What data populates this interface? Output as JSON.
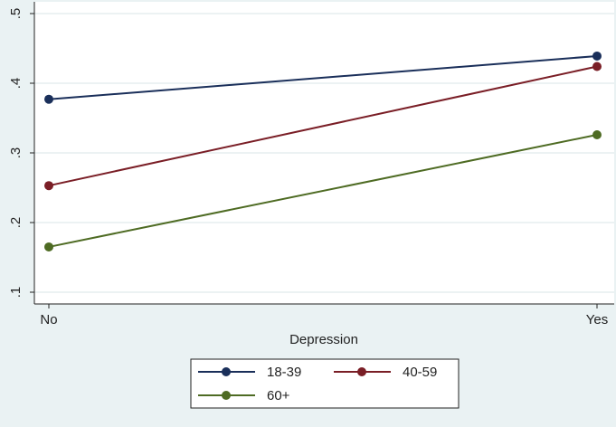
{
  "chart_data": {
    "type": "line",
    "title": "",
    "xlabel": "Depression",
    "ylabel": "",
    "categories": [
      "No",
      "Yes"
    ],
    "ylim": [
      0.1,
      0.5
    ],
    "yticks": [
      0.1,
      0.2,
      0.3,
      0.4,
      0.5
    ],
    "ytick_labels": [
      ".1",
      ".2",
      ".3",
      ".4",
      ".5"
    ],
    "grid": true,
    "legend_placement": "bottom",
    "series": [
      {
        "name": "18-39",
        "values": [
          0.377,
          0.439
        ],
        "color": "#1a2f5a"
      },
      {
        "name": "40-59",
        "values": [
          0.253,
          0.424
        ],
        "color": "#7a1e26"
      },
      {
        "name": "60+",
        "values": [
          0.165,
          0.326
        ],
        "color": "#4e6b23"
      }
    ]
  },
  "colors": {
    "page_background": "#eaf2f3",
    "plot_background": "#ffffff",
    "grid": "#e6eeef",
    "axis": "#222222"
  }
}
